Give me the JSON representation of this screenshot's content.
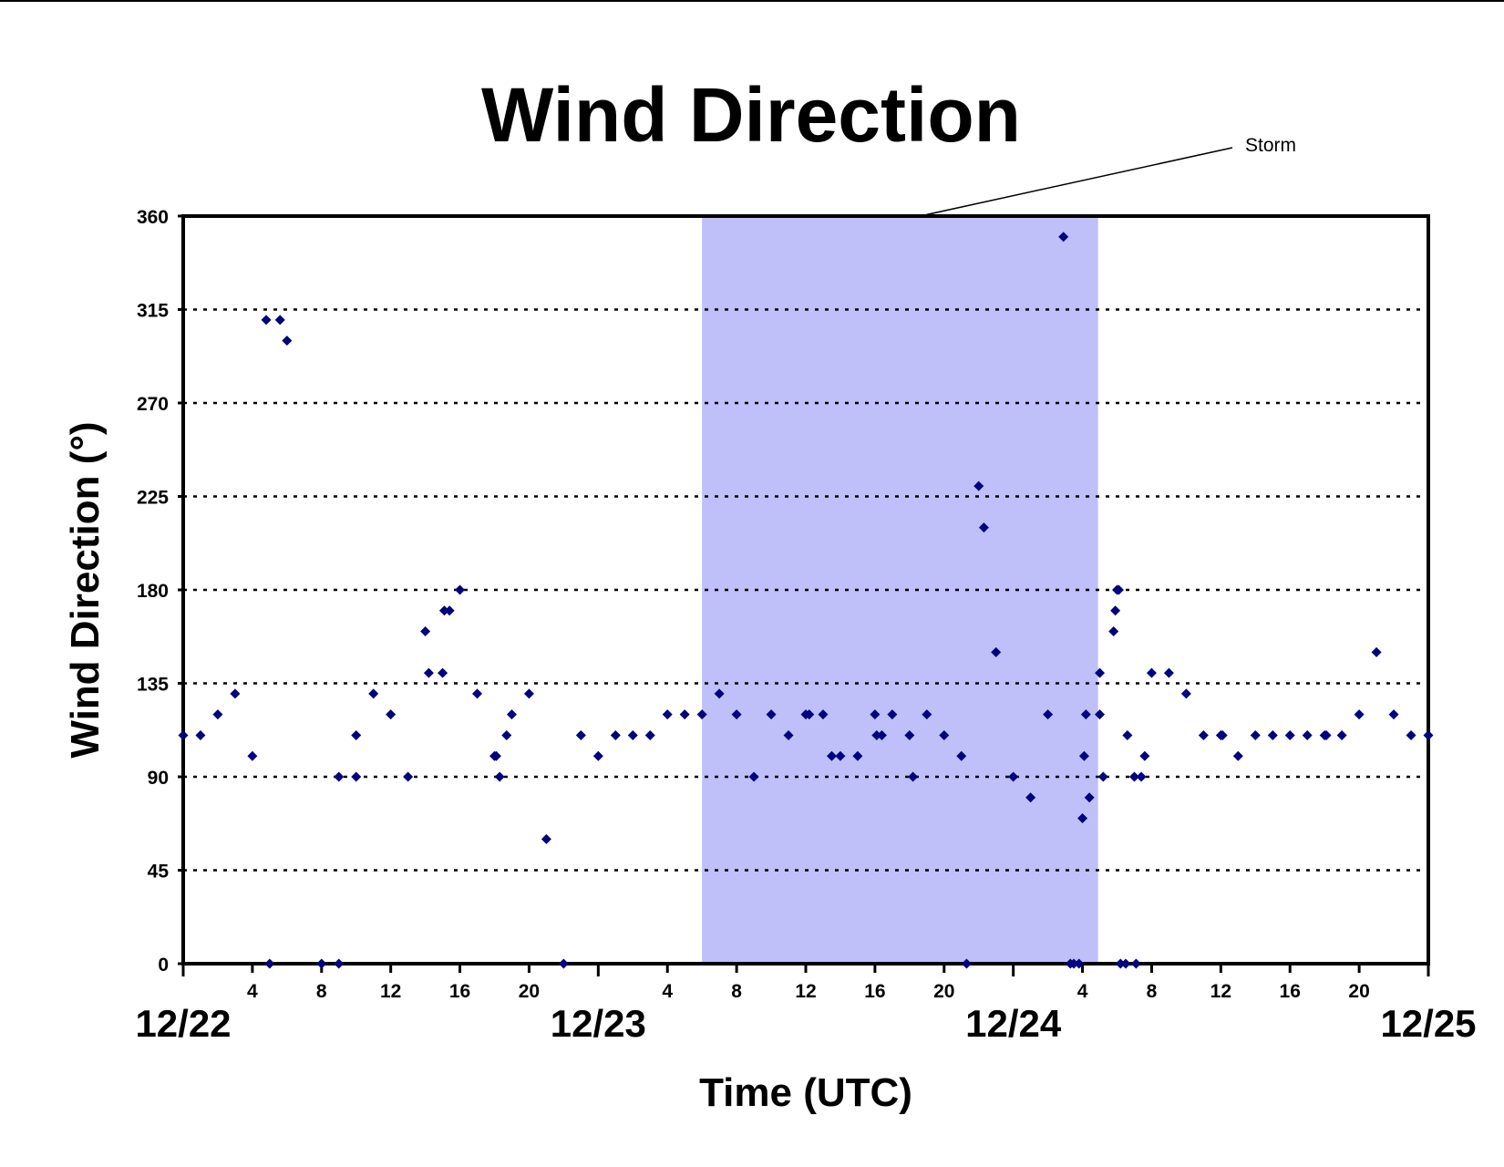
{
  "chart_data": {
    "type": "scatter",
    "title": "Wind Direction",
    "xlabel": "Time (UTC)",
    "ylabel": "Wind Direction (°)",
    "ylim": [
      0,
      360
    ],
    "yticks": [
      0,
      45,
      90,
      135,
      180,
      225,
      270,
      315,
      360
    ],
    "xlim_hours": [
      0,
      72
    ],
    "day_labels": [
      {
        "label": "12/22",
        "hour": 0
      },
      {
        "label": "12/23",
        "hour": 24
      },
      {
        "label": "12/24",
        "hour": 48
      },
      {
        "label": "12/25",
        "hour": 72
      }
    ],
    "hour_tick_labels": [
      "4",
      "8",
      "12",
      "16",
      "20"
    ],
    "grid": "horizontal dotted",
    "point_color": "#000080",
    "annotation": {
      "text": "Storm",
      "start_hour": 30.0,
      "end_hour": 52.9,
      "color": "#bfbff9"
    },
    "series": [
      {
        "points": [
          [
            0,
            110
          ],
          [
            1,
            110
          ],
          [
            2,
            120
          ],
          [
            3,
            130
          ],
          [
            4,
            100
          ],
          [
            4.8,
            310
          ],
          [
            5,
            0
          ],
          [
            5.6,
            310
          ],
          [
            6,
            300
          ],
          [
            8,
            0
          ],
          [
            9,
            90
          ],
          [
            9,
            0
          ],
          [
            10,
            90
          ],
          [
            10,
            110
          ],
          [
            11,
            130
          ],
          [
            12,
            120
          ],
          [
            13,
            90
          ],
          [
            14,
            160
          ],
          [
            14.2,
            140
          ],
          [
            15,
            140
          ],
          [
            15.1,
            170
          ],
          [
            15.4,
            170
          ],
          [
            16,
            180
          ],
          [
            17,
            130
          ],
          [
            18,
            100
          ],
          [
            18.1,
            100
          ],
          [
            18.3,
            90
          ],
          [
            18.7,
            110
          ],
          [
            19,
            120
          ],
          [
            20,
            130
          ],
          [
            21,
            60
          ],
          [
            22,
            0
          ],
          [
            23,
            110
          ],
          [
            24,
            100
          ],
          [
            25,
            110
          ],
          [
            26,
            110
          ],
          [
            27,
            110
          ],
          [
            28,
            120
          ],
          [
            29,
            120
          ],
          [
            30,
            120
          ],
          [
            31,
            130
          ],
          [
            32,
            120
          ],
          [
            33,
            90
          ],
          [
            34,
            120
          ],
          [
            35,
            110
          ],
          [
            36,
            120
          ],
          [
            36.2,
            120
          ],
          [
            37,
            120
          ],
          [
            37.5,
            100
          ],
          [
            38,
            100
          ],
          [
            39,
            100
          ],
          [
            40,
            120
          ],
          [
            40.1,
            110
          ],
          [
            40.4,
            110
          ],
          [
            41,
            120
          ],
          [
            42,
            110
          ],
          [
            42.2,
            90
          ],
          [
            43,
            120
          ],
          [
            44,
            110
          ],
          [
            45,
            100
          ],
          [
            45.3,
            0
          ],
          [
            46,
            230
          ],
          [
            46.3,
            210
          ],
          [
            47,
            150
          ],
          [
            48,
            90
          ],
          [
            49,
            80
          ],
          [
            50,
            120
          ],
          [
            50.9,
            350
          ],
          [
            51.3,
            0
          ],
          [
            51.5,
            0
          ],
          [
            51.8,
            0
          ],
          [
            52,
            70
          ],
          [
            52.1,
            100
          ],
          [
            52.2,
            120
          ],
          [
            52.4,
            80
          ],
          [
            53,
            120
          ],
          [
            53,
            140
          ],
          [
            53.2,
            90
          ],
          [
            53.8,
            160
          ],
          [
            53.9,
            170
          ],
          [
            54,
            180
          ],
          [
            54.1,
            180
          ],
          [
            54.2,
            0
          ],
          [
            54.5,
            0
          ],
          [
            54.6,
            110
          ],
          [
            55,
            90
          ],
          [
            55.1,
            0
          ],
          [
            55.4,
            90
          ],
          [
            55.6,
            100
          ],
          [
            56,
            140
          ],
          [
            57,
            140
          ],
          [
            58,
            130
          ],
          [
            59,
            110
          ],
          [
            60,
            110
          ],
          [
            60.1,
            110
          ],
          [
            61,
            100
          ],
          [
            62,
            110
          ],
          [
            63,
            110
          ],
          [
            64,
            110
          ],
          [
            65,
            110
          ],
          [
            66,
            110
          ],
          [
            66.1,
            110
          ],
          [
            67,
            110
          ],
          [
            68,
            120
          ],
          [
            69,
            150
          ],
          [
            70,
            120
          ],
          [
            71,
            110
          ],
          [
            72,
            110
          ]
        ]
      }
    ]
  }
}
